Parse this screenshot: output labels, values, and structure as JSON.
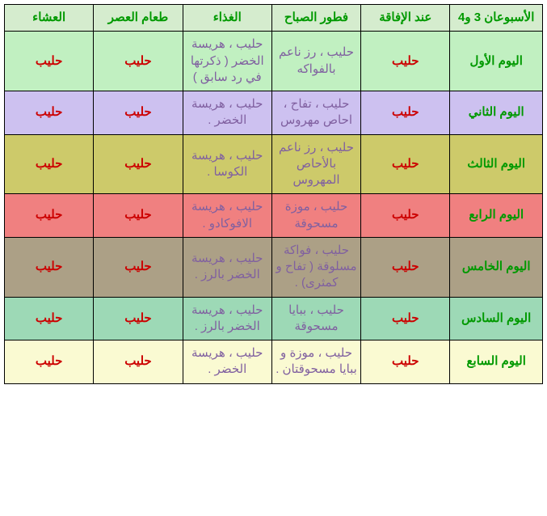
{
  "table": {
    "header_bg": "#d5ecce",
    "headers": [
      "الأسبوعان 3 و4",
      "عند الإفاقة",
      "فطور الصباح",
      "الغذاء",
      "طعام العصر",
      "العشاء"
    ],
    "rows": [
      {
        "bg": "#c1f0c1",
        "day": "اليوم الأول",
        "cells": [
          "حليب",
          "حليب ، رز ناعم بالفواكه",
          "حليب ، هريسة الخضر ( ذكرتها في رد سابق )",
          "حليب",
          "حليب"
        ]
      },
      {
        "bg": "#cdc1f0",
        "day": "اليوم الثاني",
        "cells": [
          "حليب",
          "حليب ، تفاح ، احاص مهروس",
          "حليب ، هريسة الخضر .",
          "حليب",
          "حليب"
        ]
      },
      {
        "bg": "#cdca6a",
        "day": "اليوم الثالث",
        "cells": [
          "حليب",
          "حليب ، رز ناعم بالأحاص المهروس",
          "حليب ، هريسة الكوسا .",
          "حليب",
          "حليب"
        ]
      },
      {
        "bg": "#f08080",
        "day": "اليوم الرابع",
        "cells": [
          "حليب",
          "حليب ، موزة مسحوقة",
          "حليب ، هريسة الافوكادو .",
          "حليب",
          "حليب"
        ]
      },
      {
        "bg": "#aca086",
        "day": "اليوم الخامس",
        "cells": [
          "حليب",
          "حليب ، فواكة مسلوقة ( تفاح و كمثرى) .",
          "حليب ، هريسة الخضر بالرز .",
          "حليب",
          "حليب"
        ]
      },
      {
        "bg": "#9dd9b6",
        "day": "اليوم السادس",
        "cells": [
          "حليب",
          "حليب ، ببايا مسحوقة",
          "حليب ، هريسة الخضر بالرز .",
          "حليب",
          "حليب"
        ]
      },
      {
        "bg": "#fafad2",
        "day": "اليوم السابع",
        "cells": [
          "حليب",
          "حليب ، موزة و ببايا مسحوقتان .",
          "حليب ، هريسة الخضر .",
          "حليب",
          "حليب"
        ]
      }
    ]
  }
}
